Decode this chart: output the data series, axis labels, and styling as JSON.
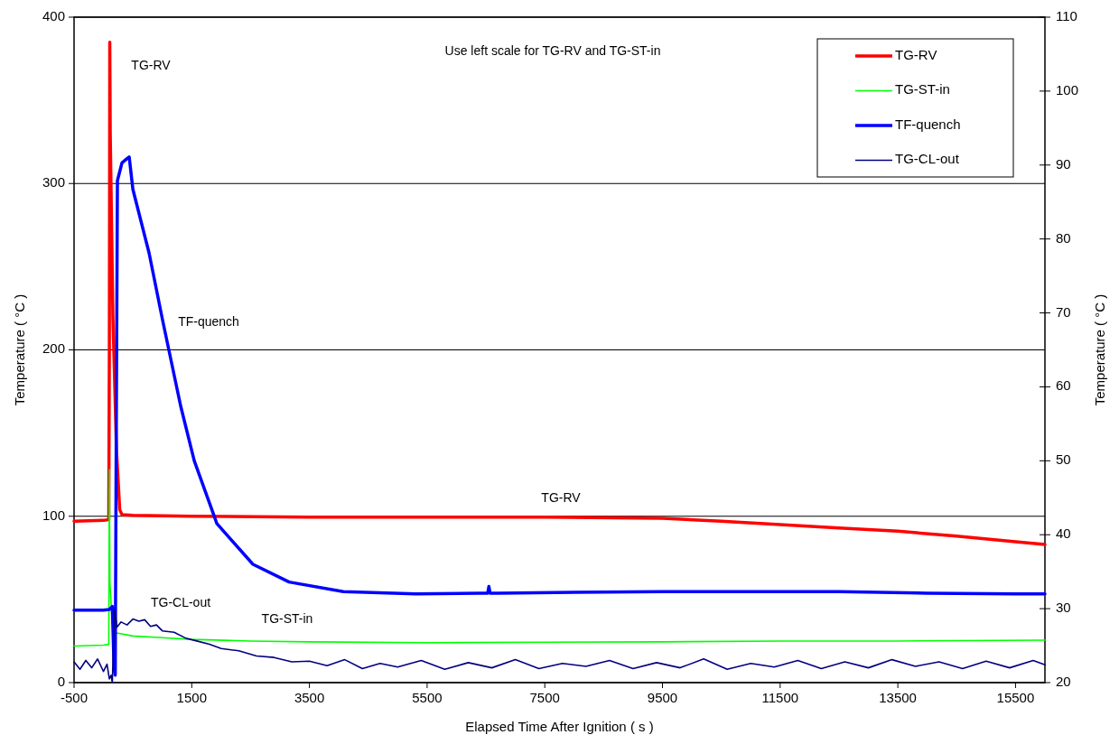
{
  "chart_data": {
    "type": "line",
    "xlabel": "Elapsed Time After Ignition ( s )",
    "ylabel": "Temperature ( °C )",
    "y2label": "Temperature ( °C )",
    "xlim": [
      -500,
      16000
    ],
    "xticks": [
      -500,
      1500,
      3500,
      5500,
      7500,
      9500,
      11500,
      13500,
      15500
    ],
    "ylim": [
      0,
      400
    ],
    "yticks": [
      0,
      100,
      200,
      300,
      400
    ],
    "y2lim": [
      20,
      110
    ],
    "y2ticks": [
      20,
      30,
      40,
      50,
      60,
      70,
      80,
      90,
      100,
      110
    ],
    "grid": "y",
    "legend": "top right",
    "line_style": "solid",
    "annotations": [
      "Use left scale for TG-RV and TG-ST-in",
      "TG-RV",
      "TF-quench",
      "TG-RV",
      "TG-CL-out",
      "TG-ST-in"
    ],
    "series": [
      {
        "name": "TG-RV",
        "color": "#ff0000",
        "x": [
          -500,
          0,
          90,
          100,
          107,
          115,
          160,
          222,
          276,
          314,
          500,
          1500,
          3500,
          5500,
          7500,
          9500,
          10500,
          11500,
          12500,
          13500,
          14500,
          15500,
          16000
        ],
        "values": [
          97,
          97.5,
          98,
          200,
          385,
          330,
          220,
          139,
          104,
          101,
          100.5,
          100,
          99.5,
          99.5,
          99.5,
          98.8,
          97,
          95,
          93,
          91,
          88,
          84.7,
          83
        ]
      },
      {
        "name": "TG-ST-in",
        "color": "#00ff00",
        "x": [
          -500,
          0,
          90,
          100,
          110,
          150,
          200,
          500,
          1000,
          1500,
          2500,
          3500,
          5500,
          7500,
          9500,
          11500,
          13500,
          16000
        ],
        "values": [
          22,
          22.5,
          23,
          128,
          60,
          35,
          30,
          28,
          27,
          26,
          25,
          24.5,
          24,
          24.3,
          24.5,
          25,
          25,
          25.5
        ]
      },
      {
        "name": "TF-quench",
        "color": "#0000ff",
        "axis": "y2",
        "x": [
          -500,
          0,
          100,
          150,
          180,
          200,
          215,
          237,
          314,
          391,
          437,
          500,
          775,
          1005,
          1312,
          1543,
          1927,
          2541,
          3156,
          4077,
          5306,
          6400,
          6530,
          6550,
          6570,
          6700,
          8000,
          9500,
          11000,
          12500,
          14000,
          15500,
          16000
        ],
        "values": [
          29.8,
          29.8,
          29.9,
          30.3,
          22,
          21,
          50,
          87.9,
          90.3,
          90.8,
          91.1,
          86.7,
          78.1,
          69,
          57.4,
          50,
          41.5,
          36,
          33.6,
          32.3,
          32,
          32.1,
          32.1,
          33,
          32.1,
          32.1,
          32.2,
          32.3,
          32.3,
          32.3,
          32.1,
          32,
          32
        ]
      },
      {
        "name": "TG-CL-out",
        "color": "#000080",
        "axis": "y2",
        "x": [
          -500,
          -400,
          -300,
          -200,
          -100,
          0,
          60,
          100,
          130,
          150,
          190,
          230,
          300,
          400,
          500,
          600,
          700,
          800,
          900,
          1000,
          1200,
          1400,
          1600,
          1800,
          2000,
          2300,
          2600,
          2900,
          3200,
          3500,
          3800,
          4100,
          4400,
          4700,
          5000,
          5400,
          5800,
          6200,
          6600,
          7000,
          7400,
          7800,
          8200,
          8600,
          9000,
          9400,
          9800,
          10200,
          10600,
          11000,
          11400,
          11800,
          12200,
          12600,
          13000,
          13400,
          13800,
          14200,
          14600,
          15000,
          15400,
          15800,
          16000
        ],
        "values": [
          22.8,
          21.8,
          23,
          22,
          23.2,
          21.5,
          22.5,
          20.5,
          21,
          20,
          29.8,
          27.5,
          28.2,
          27.8,
          28.6,
          28.3,
          28.5,
          27.6,
          27.8,
          27,
          26.8,
          26,
          25.6,
          25.2,
          24.6,
          24.3,
          23.6,
          23.4,
          22.8,
          22.9,
          22.3,
          23.1,
          21.9,
          22.6,
          22.1,
          23,
          21.8,
          22.7,
          22,
          23.1,
          21.9,
          22.6,
          22.2,
          23,
          21.9,
          22.7,
          22,
          23.2,
          21.8,
          22.6,
          22.1,
          23,
          21.9,
          22.8,
          22,
          23.1,
          22.2,
          22.8,
          21.9,
          22.9,
          22,
          23,
          22.4
        ]
      }
    ]
  }
}
